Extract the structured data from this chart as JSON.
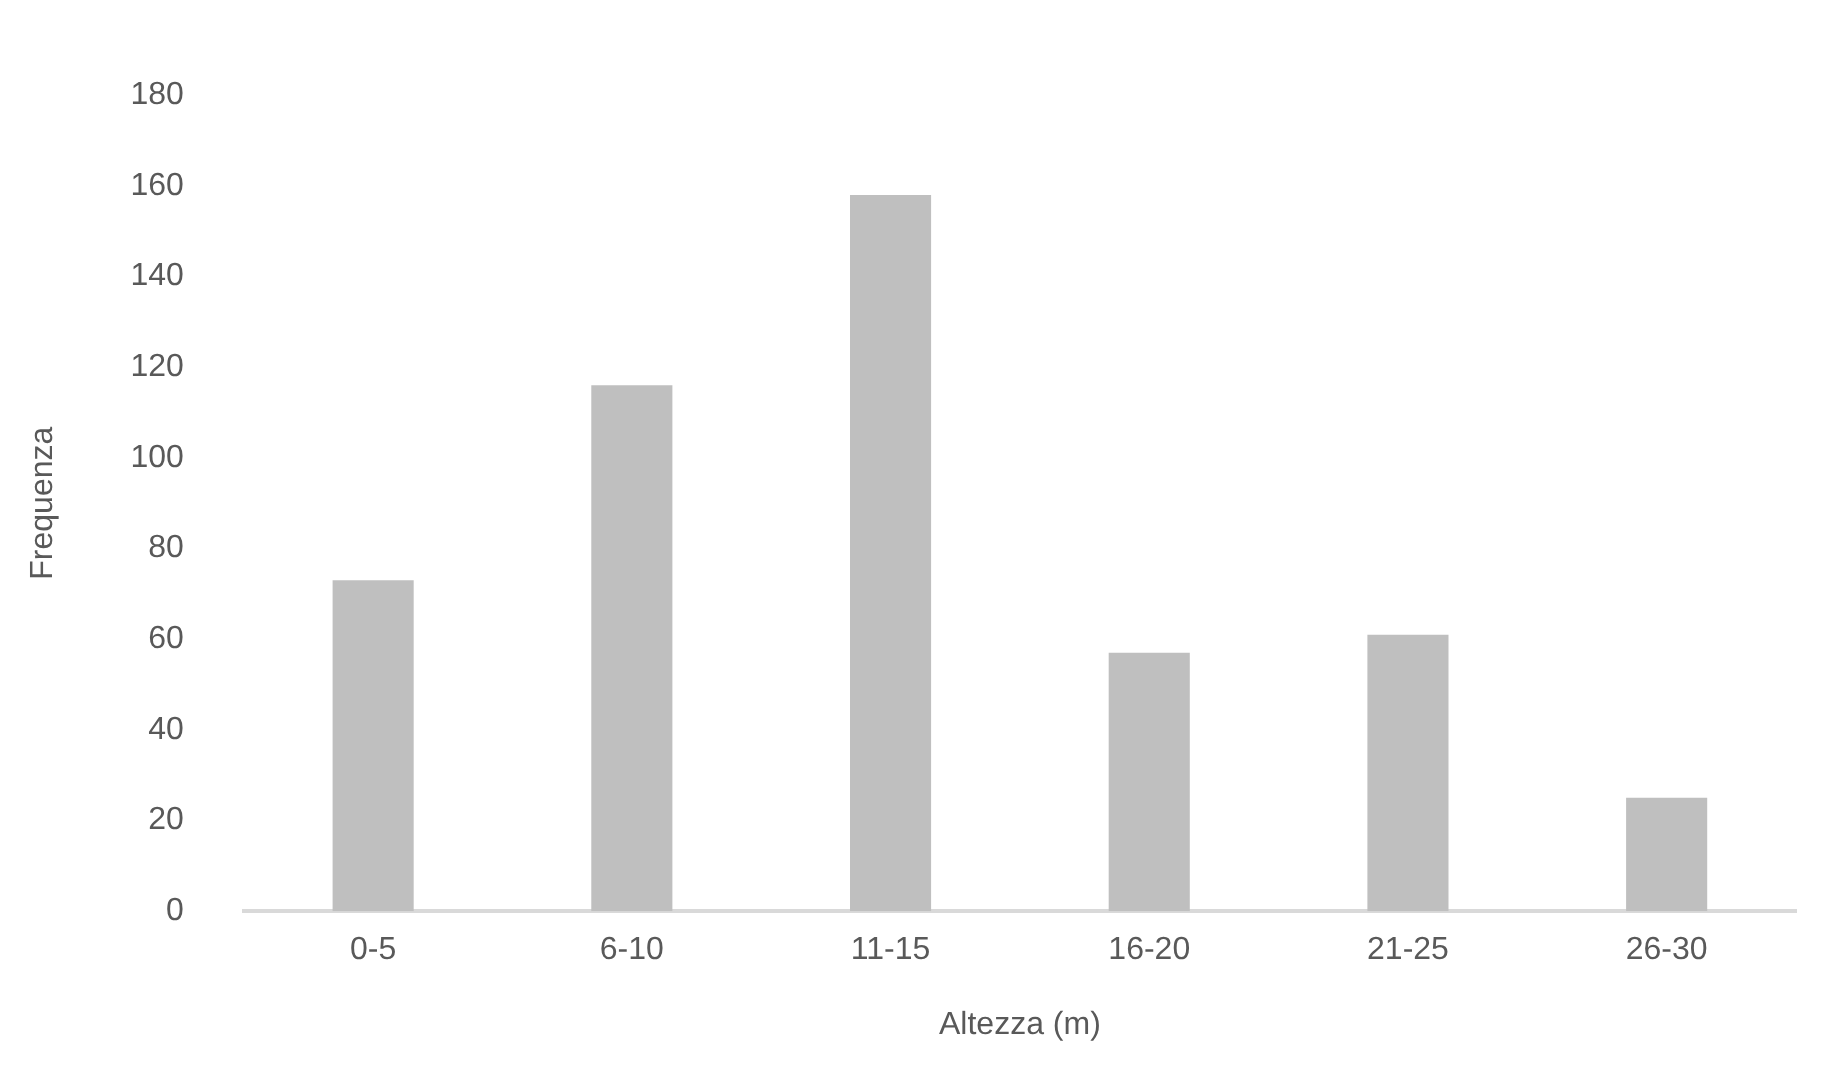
{
  "chart_data": {
    "type": "bar",
    "xlabel": "Altezza (m)",
    "ylabel": "Frequenza",
    "categories": [
      "0-5",
      "6-10",
      "11-15",
      "16-20",
      "21-25",
      "26-30"
    ],
    "values": [
      73,
      116,
      158,
      57,
      61,
      25
    ],
    "color": "#bfbfbf",
    "ylim": [
      0,
      180
    ],
    "yticks": [
      0,
      20,
      40,
      60,
      80,
      100,
      120,
      140,
      160,
      180
    ],
    "grid": false,
    "legend": false
  }
}
